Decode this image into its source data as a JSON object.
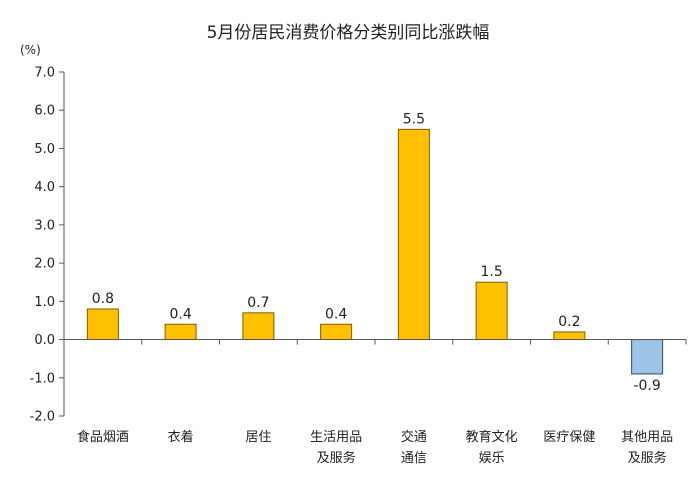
{
  "chart_data": {
    "type": "bar",
    "title": "5月份居民消费价格分类别同比涨跌幅",
    "unit_label": "(%)",
    "categories": [
      [
        "食品烟酒"
      ],
      [
        "衣着"
      ],
      [
        "居住"
      ],
      [
        "生活用品",
        "及服务"
      ],
      [
        "交通",
        "通信"
      ],
      [
        "教育文化",
        "娱乐"
      ],
      [
        "医疗保健"
      ],
      [
        "其他用品",
        "及服务"
      ]
    ],
    "values": [
      0.8,
      0.4,
      0.7,
      0.4,
      5.5,
      1.5,
      0.2,
      -0.9
    ],
    "value_labels": [
      "0.8",
      "0.4",
      "0.7",
      "0.4",
      "5.5",
      "1.5",
      "0.2",
      "-0.9"
    ],
    "y_ticks": [
      "7.0",
      "6.0",
      "5.0",
      "4.0",
      "3.0",
      "2.0",
      "1.0",
      "0.0",
      "-1.0",
      "-2.0"
    ],
    "ylim": [
      -2.0,
      7.0
    ],
    "grid": false,
    "legend": "none",
    "colors": {
      "positive_fill": "#FFC000",
      "positive_stroke": "#7F6000",
      "negative_fill": "#9DC3E6",
      "negative_stroke": "#2E4A6B",
      "axis": "#595959"
    }
  }
}
